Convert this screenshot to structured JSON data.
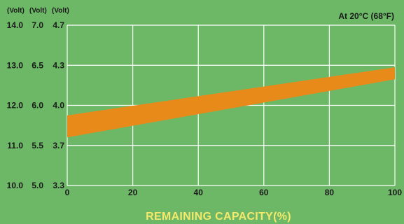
{
  "chart_data": {
    "type": "area",
    "title": "",
    "annotation": "At 20°C (68°F)",
    "xlabel": "REMAINING CAPACITY(%)",
    "x_ticks": [
      "0",
      "20",
      "40",
      "60",
      "80",
      "100"
    ],
    "xlim": [
      0,
      100
    ],
    "y_axes": [
      {
        "header": "(Volt)",
        "ticks": [
          "14.0",
          "13.0",
          "12.0",
          "11.0",
          "10.0"
        ]
      },
      {
        "header": "(Volt)",
        "ticks": [
          "7.0",
          "6.5",
          "6.0",
          "5.5",
          "5.0"
        ]
      },
      {
        "header": "(Volt)",
        "ticks": [
          "4.7",
          "4.3",
          "4.0",
          "3.7",
          "3.3"
        ]
      }
    ],
    "ylim": [
      10.0,
      14.0
    ],
    "grid": true,
    "band": {
      "x": [
        0,
        100
      ],
      "upper": [
        11.75,
        12.95
      ],
      "lower": [
        11.2,
        12.65
      ]
    },
    "colors": {
      "background": "#6cb866",
      "grid": "#ffffff",
      "band": "#e88a1a",
      "axis_text": "#1a1a1a",
      "xlabel_text": "#f6e86a"
    }
  }
}
